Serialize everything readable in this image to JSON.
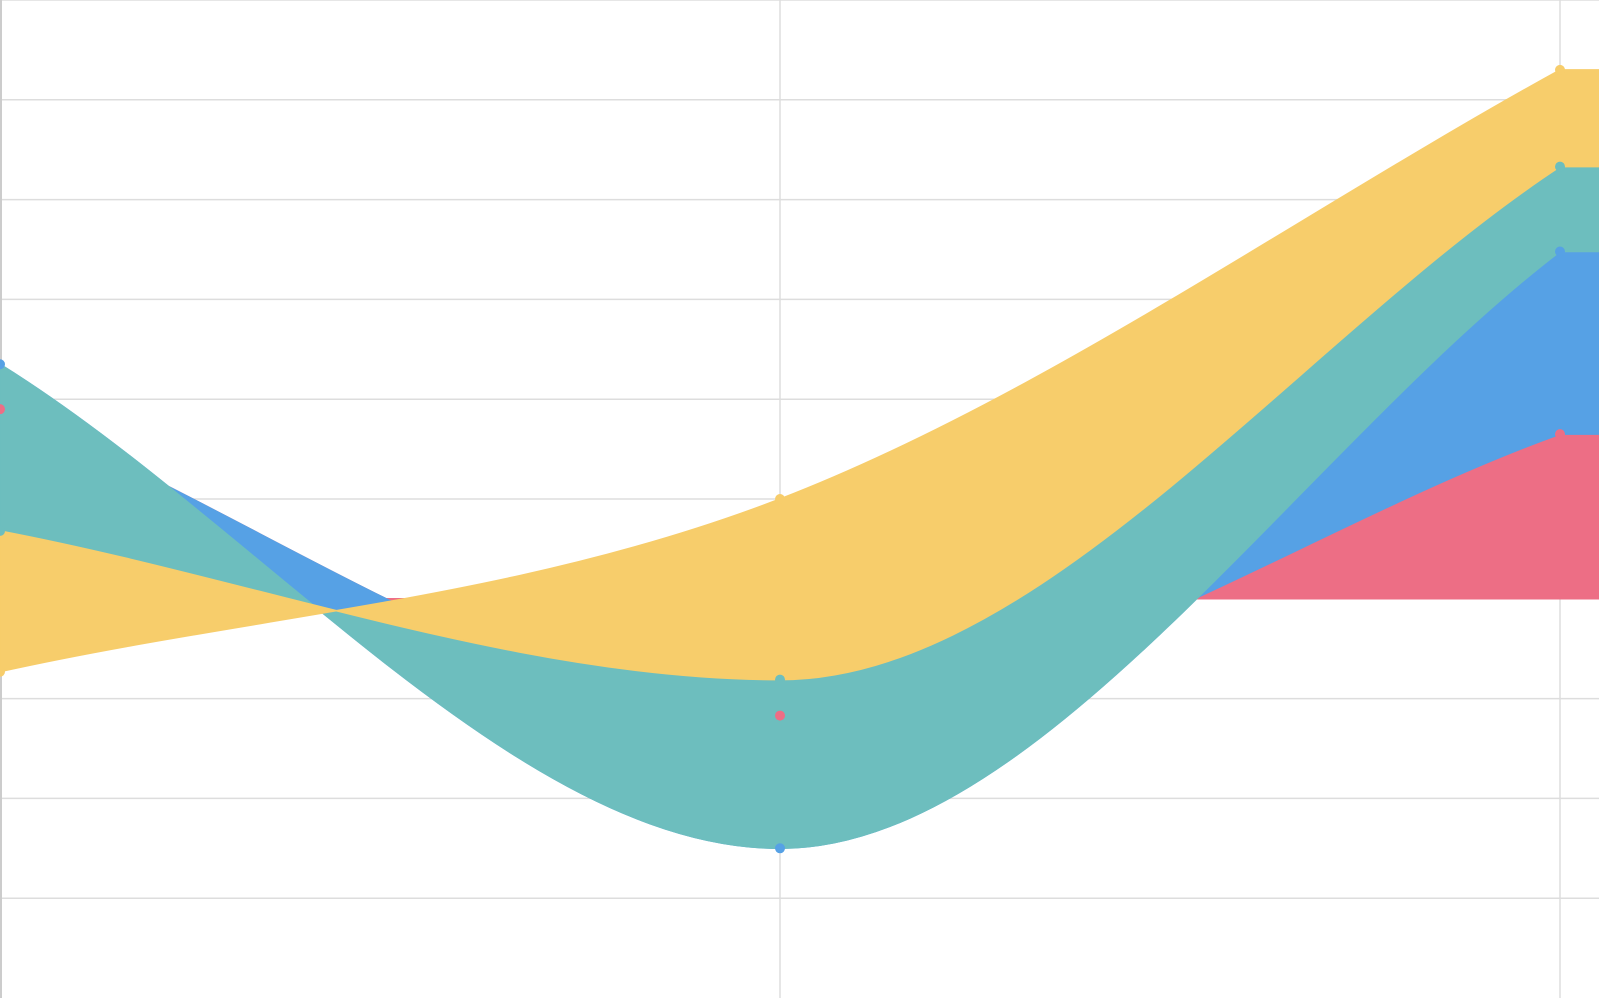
{
  "chart_data": {
    "type": "area",
    "stacked": true,
    "baseline": 0,
    "x": [
      0,
      1,
      2
    ],
    "xlim": [
      0,
      2.05
    ],
    "ylim": [
      -4,
      6
    ],
    "grid": true,
    "title": "",
    "xlabel": "",
    "ylabel": "",
    "series": [
      {
        "color": "#ed6e85",
        "values": [
          1.9,
          -1.17,
          1.65
        ]
      },
      {
        "color": "#56a1e5",
        "values": [
          0.45,
          -1.33,
          1.83
        ]
      },
      {
        "color": "#6dbebe",
        "values": [
          -1.67,
          1.69,
          0.85
        ]
      },
      {
        "color": "#f7cd6b",
        "values": [
          -1.41,
          1.81,
          0.97
        ]
      }
    ]
  }
}
